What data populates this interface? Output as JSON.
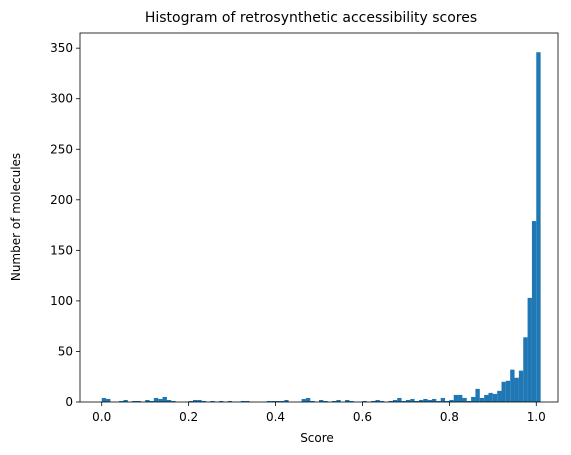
{
  "chart_data": {
    "type": "bar",
    "title": "Histogram of retrosynthetic accessibility scores",
    "xlabel": "Score",
    "ylabel": "Number of molecules",
    "xlim": [
      -0.05,
      1.05
    ],
    "ylim": [
      0,
      365
    ],
    "xticks": [
      0.0,
      0.2,
      0.4,
      0.6,
      0.8,
      1.0
    ],
    "xtick_labels": [
      "0.0",
      "0.2",
      "0.4",
      "0.6",
      "0.8",
      "1.0"
    ],
    "yticks": [
      0,
      50,
      100,
      150,
      200,
      250,
      300,
      350
    ],
    "ytick_labels": [
      "0",
      "50",
      "100",
      "150",
      "200",
      "250",
      "300",
      "350"
    ],
    "bin_start": 0.0,
    "bin_width": 0.01,
    "counts": [
      4,
      3,
      0,
      0,
      1,
      2,
      0,
      1,
      1,
      0,
      2,
      1,
      4,
      3,
      5,
      2,
      1,
      0,
      0,
      0,
      1,
      2,
      2,
      1,
      0,
      1,
      0,
      1,
      0,
      1,
      0,
      0,
      1,
      1,
      0,
      0,
      0,
      0,
      1,
      1,
      1,
      1,
      2,
      0,
      0,
      0,
      3,
      4,
      1,
      0,
      2,
      1,
      0,
      1,
      2,
      0,
      2,
      1,
      0,
      0,
      1,
      0,
      1,
      2,
      1,
      0,
      1,
      2,
      4,
      1,
      2,
      3,
      1,
      2,
      3,
      2,
      3,
      1,
      4,
      1,
      2,
      7,
      7,
      4,
      1,
      5,
      13,
      4,
      7,
      9,
      8,
      11,
      20,
      21,
      32,
      24,
      31,
      64,
      103,
      179,
      346
    ],
    "bar_color": "#1f77b4",
    "grid": false
  }
}
